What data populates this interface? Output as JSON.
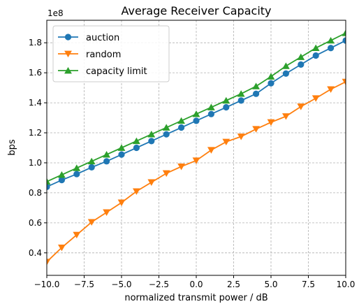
{
  "chart_data": {
    "type": "line",
    "title": "Average Receiver Capacity",
    "xlabel": "normalized transmit power / dB",
    "ylabel": "bps",
    "y_offset_label": "1e8",
    "xlim": [
      -10,
      10
    ],
    "ylim": [
      0.25,
      1.95
    ],
    "x_ticks": [
      -10,
      -7.5,
      -5,
      -2.5,
      0,
      2.5,
      5,
      7.5,
      10
    ],
    "x_tick_labels": [
      "−10.0",
      "−7.5",
      "−5.0",
      "−2.5",
      "0.0",
      "2.5",
      "5.0",
      "7.5",
      "10.0"
    ],
    "y_ticks": [
      0.4,
      0.6,
      0.8,
      1.0,
      1.2,
      1.4,
      1.6,
      1.8
    ],
    "y_tick_labels": [
      "0.4",
      "0.6",
      "0.8",
      "1.0",
      "1.2",
      "1.4",
      "1.6",
      "1.8"
    ],
    "grid": true,
    "legend_position": "upper-left",
    "x": [
      -10,
      -9,
      -8,
      -7,
      -6,
      -5,
      -4,
      -3,
      -2,
      -1,
      0,
      1,
      2,
      3,
      4,
      5,
      6,
      7,
      8,
      9,
      10
    ],
    "series": [
      {
        "name": "auction",
        "color": "#1f77b4",
        "marker": "circle",
        "values": [
          0.84,
          0.885,
          0.925,
          0.97,
          1.01,
          1.055,
          1.1,
          1.145,
          1.19,
          1.235,
          1.28,
          1.325,
          1.37,
          1.415,
          1.46,
          1.53,
          1.595,
          1.655,
          1.715,
          1.765,
          1.815
        ]
      },
      {
        "name": "random",
        "color": "#ff7f0e",
        "marker": "triangle-down",
        "values": [
          0.34,
          0.435,
          0.52,
          0.605,
          0.67,
          0.735,
          0.81,
          0.87,
          0.93,
          0.975,
          1.015,
          1.085,
          1.14,
          1.175,
          1.225,
          1.27,
          1.31,
          1.375,
          1.43,
          1.49,
          1.54
        ]
      },
      {
        "name": "capacity limit",
        "color": "#2ca02c",
        "marker": "triangle-up",
        "values": [
          0.875,
          0.92,
          0.965,
          1.01,
          1.055,
          1.1,
          1.145,
          1.19,
          1.235,
          1.28,
          1.325,
          1.37,
          1.415,
          1.46,
          1.51,
          1.575,
          1.645,
          1.705,
          1.765,
          1.815,
          1.865
        ]
      }
    ]
  }
}
